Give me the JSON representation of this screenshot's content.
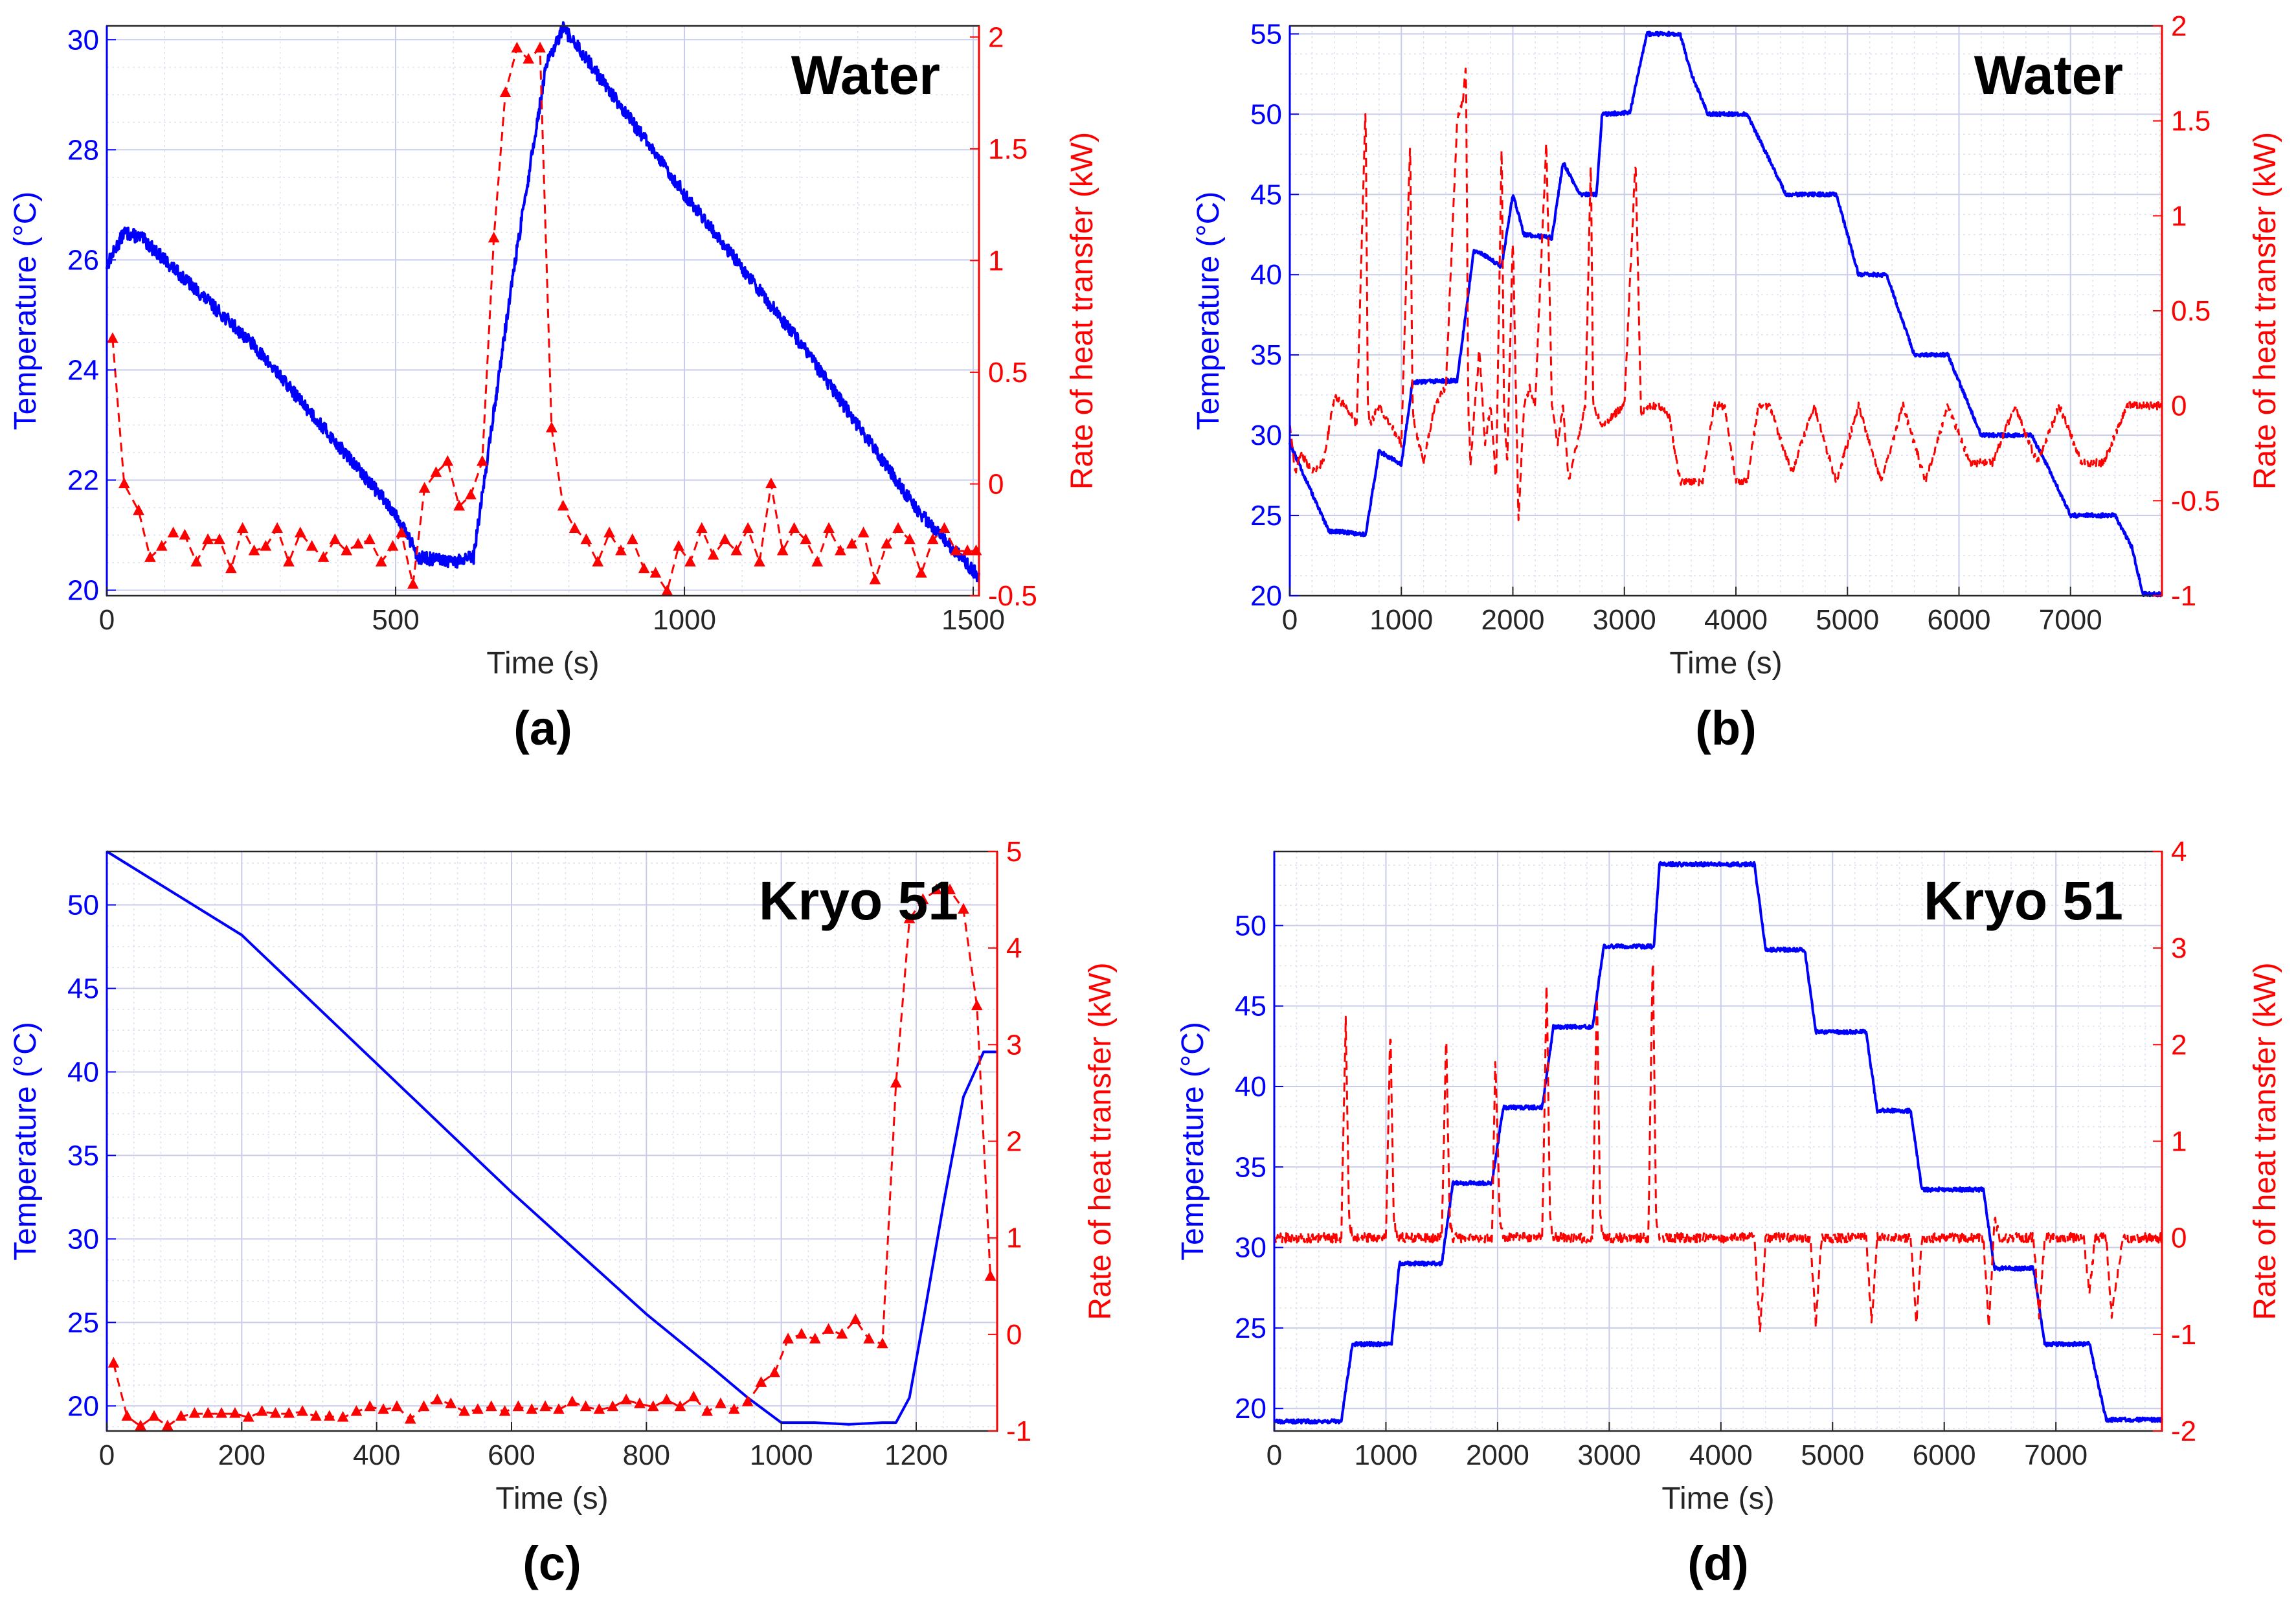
{
  "chart_data": [
    {
      "type": "line",
      "caption": "(a)",
      "title": "Water",
      "xlabel": "Time (s)",
      "ylabel": "Temperature (°C)",
      "ylabel2": "Rate of heat transfer (kW)",
      "xlim": [
        0,
        1510
      ],
      "ylim": [
        19.9,
        30.25
      ],
      "ylim2": [
        -0.5,
        2.05
      ],
      "xticks": [
        0,
        500,
        1000,
        1500
      ],
      "xtick_labels": [
        "0",
        "500",
        "1000",
        "1500"
      ],
      "yticks": [
        20,
        22,
        24,
        26,
        28,
        30
      ],
      "ytick_labels": [
        "20",
        "22",
        "24",
        "26",
        "28",
        "30"
      ],
      "yticks2": [
        -0.5,
        0,
        0.5,
        1,
        1.5,
        2
      ],
      "ytick_labels2": [
        "-0.5",
        "0",
        "0.5",
        "1",
        "1.5",
        "2"
      ],
      "grid": true,
      "colors": {
        "temperature": "#0000ff",
        "heat_rate": "#ff0000"
      },
      "series": [
        {
          "axis": "left",
          "style": "solid",
          "noise": 0.12,
          "x": [
            0,
            30,
            60,
            250,
            500,
            540,
            600,
            635,
            700,
            760,
            790,
            820,
            1000,
            1200,
            1400,
            1505,
            1510
          ],
          "y": [
            25.9,
            26.5,
            26.4,
            24.5,
            21.4,
            20.6,
            20.5,
            20.6,
            25.5,
            29.5,
            30.2,
            29.8,
            27.2,
            24.5,
            21.5,
            20.3,
            20.2
          ]
        },
        {
          "axis": "right",
          "style": "dashed-triangle",
          "noise": 0,
          "x": [
            10,
            30,
            55,
            75,
            95,
            115,
            135,
            155,
            175,
            195,
            215,
            235,
            255,
            275,
            295,
            315,
            335,
            355,
            375,
            395,
            415,
            435,
            455,
            475,
            495,
            510,
            530,
            550,
            570,
            590,
            610,
            630,
            650,
            670,
            690,
            710,
            730,
            750,
            770,
            790,
            810,
            830,
            850,
            870,
            890,
            910,
            930,
            950,
            970,
            990,
            1010,
            1030,
            1050,
            1070,
            1090,
            1110,
            1130,
            1150,
            1170,
            1190,
            1210,
            1230,
            1250,
            1270,
            1290,
            1310,
            1330,
            1350,
            1370,
            1390,
            1410,
            1430,
            1450,
            1470,
            1490,
            1505
          ],
          "y": [
            0.65,
            0.0,
            -0.12,
            -0.33,
            -0.28,
            -0.22,
            -0.23,
            -0.35,
            -0.25,
            -0.25,
            -0.38,
            -0.2,
            -0.3,
            -0.28,
            -0.2,
            -0.35,
            -0.22,
            -0.28,
            -0.33,
            -0.25,
            -0.3,
            -0.27,
            -0.25,
            -0.35,
            -0.28,
            -0.22,
            -0.45,
            -0.02,
            0.05,
            0.1,
            -0.1,
            -0.05,
            0.1,
            1.1,
            1.75,
            1.95,
            1.9,
            1.95,
            0.25,
            -0.1,
            -0.2,
            -0.25,
            -0.35,
            -0.22,
            -0.3,
            -0.25,
            -0.38,
            -0.4,
            -0.48,
            -0.28,
            -0.35,
            -0.2,
            -0.32,
            -0.25,
            -0.3,
            -0.2,
            -0.35,
            0.0,
            -0.3,
            -0.2,
            -0.25,
            -0.35,
            -0.2,
            -0.3,
            -0.27,
            -0.22,
            -0.43,
            -0.27,
            -0.2,
            -0.25,
            -0.4,
            -0.25,
            -0.2,
            -0.3,
            -0.3,
            -0.3
          ]
        }
      ]
    },
    {
      "type": "line",
      "caption": "(b)",
      "title": "Water",
      "xlabel": "Time (s)",
      "ylabel": "Temperature (°C)",
      "ylabel2": "Rate of heat transfer (kW)",
      "xlim": [
        0,
        7820
      ],
      "ylim": [
        20,
        55.5
      ],
      "ylim2": [
        -1,
        2
      ],
      "xticks": [
        0,
        1000,
        2000,
        3000,
        4000,
        5000,
        6000,
        7000
      ],
      "xtick_labels": [
        "0",
        "1000",
        "2000",
        "3000",
        "4000",
        "5000",
        "6000",
        "7000"
      ],
      "yticks": [
        20,
        25,
        30,
        35,
        40,
        45,
        50,
        55
      ],
      "ytick_labels": [
        "20",
        "25",
        "30",
        "35",
        "40",
        "45",
        "50",
        "55"
      ],
      "yticks2": [
        -1,
        -0.5,
        0,
        0.5,
        1,
        1.5,
        2
      ],
      "ytick_labels2": [
        "-1",
        "-0.5",
        "0",
        "0.5",
        "1",
        "1.5",
        "2"
      ],
      "grid": true,
      "colors": {
        "temperature": "#0000ff",
        "heat_rate": "#ff0000"
      },
      "series": [
        {
          "axis": "left",
          "style": "solid",
          "noise": 0.12,
          "x": [
            0,
            350,
            450,
            680,
            800,
            1000,
            1100,
            1500,
            1650,
            1750,
            1900,
            2000,
            2100,
            2350,
            2450,
            2600,
            2750,
            2800,
            3050,
            3200,
            3500,
            3600,
            3750,
            4000,
            4100,
            4450,
            4600,
            4900,
            5100,
            5350,
            5600,
            5900,
            6200,
            6500,
            6650,
            6800,
            7000,
            7400,
            7550,
            7650,
            7820
          ],
          "y": [
            29.5,
            24.0,
            24.0,
            23.8,
            29.0,
            28.2,
            33.3,
            33.4,
            41.5,
            41.2,
            40.5,
            45.0,
            42.5,
            42.3,
            47.0,
            45.0,
            45.0,
            50.0,
            50.1,
            55.0,
            55.0,
            52.5,
            50.0,
            50.0,
            50.0,
            45.0,
            45.0,
            45.0,
            40.0,
            40.0,
            35.0,
            35.0,
            30.0,
            30.0,
            30.0,
            28.0,
            25.0,
            25.0,
            23.0,
            20.1,
            20.1
          ]
        },
        {
          "axis": "right",
          "style": "dashed",
          "noise": 0.02,
          "x": [
            0,
            50,
            100,
            200,
            300,
            400,
            500,
            600,
            680,
            700,
            720,
            800,
            900,
            1000,
            1080,
            1100,
            1120,
            1200,
            1300,
            1400,
            1500,
            1550,
            1580,
            1600,
            1620,
            1700,
            1750,
            1800,
            1850,
            1900,
            1920,
            1950,
            2000,
            2050,
            2100,
            2150,
            2200,
            2300,
            2350,
            2400,
            2450,
            2500,
            2650,
            2700,
            2720,
            2800,
            2900,
            3000,
            3100,
            3150,
            3200,
            3300,
            3400,
            3500,
            3700,
            3800,
            3900,
            4000,
            4100,
            4200,
            4300,
            4500,
            4700,
            4900,
            5100,
            5300,
            5500,
            5700,
            5900,
            6100,
            6300,
            6500,
            6700,
            6900,
            7100,
            7300,
            7500,
            7700,
            7820
          ],
          "y": [
            -0.1,
            -0.35,
            -0.25,
            -0.35,
            -0.3,
            0.05,
            0.0,
            -0.1,
            1.6,
            0.0,
            -0.1,
            0.0,
            -0.1,
            -0.2,
            1.4,
            0.0,
            -0.1,
            -0.3,
            0.0,
            0.1,
            1.5,
            1.6,
            1.8,
            0.0,
            -0.3,
            0.3,
            -0.2,
            0.0,
            -0.4,
            1.4,
            0.0,
            -0.3,
            0.9,
            -0.6,
            0.0,
            0.1,
            0.0,
            1.4,
            0.0,
            -0.2,
            0.0,
            -0.4,
            0.0,
            1.3,
            0.0,
            -0.1,
            -0.05,
            0.0,
            1.3,
            -0.05,
            0.0,
            0.0,
            -0.05,
            -0.4,
            -0.4,
            0.0,
            0.0,
            -0.4,
            -0.4,
            0.0,
            0.0,
            -0.35,
            0.0,
            -0.4,
            0.0,
            -0.4,
            0.0,
            -0.4,
            0.0,
            -0.3,
            -0.3,
            0.0,
            -0.3,
            0.0,
            -0.3,
            -0.3,
            0.0,
            0.0,
            0.0
          ]
        }
      ]
    },
    {
      "type": "line",
      "caption": "(c)",
      "title": "Kryo 51",
      "xlabel": "Time (s)",
      "ylabel": "Temperature (°C)",
      "ylabel2": "Rate of heat transfer (kW)",
      "xlim": [
        0,
        1320
      ],
      "ylim": [
        18.5,
        53.2
      ],
      "ylim2": [
        -1,
        5
      ],
      "xticks": [
        0,
        200,
        400,
        600,
        800,
        1000,
        1200
      ],
      "xtick_labels": [
        "0",
        "200",
        "400",
        "600",
        "800",
        "1000",
        "1200"
      ],
      "yticks": [
        20,
        25,
        30,
        35,
        40,
        45,
        50
      ],
      "ytick_labels": [
        "20",
        "25",
        "30",
        "35",
        "40",
        "45",
        "50"
      ],
      "yticks2": [
        -1,
        0,
        1,
        2,
        3,
        4,
        5
      ],
      "ytick_labels2": [
        "-1",
        "0",
        "1",
        "2",
        "3",
        "4",
        "5"
      ],
      "grid": true,
      "colors": {
        "temperature": "#0000ff",
        "heat_rate": "#ff0000"
      },
      "series": [
        {
          "axis": "left",
          "style": "solid",
          "noise": 0,
          "x": [
            0,
            200,
            400,
            600,
            800,
            900,
            950,
            1000,
            1050,
            1100,
            1150,
            1170,
            1190,
            1210,
            1240,
            1270,
            1300,
            1320
          ],
          "y": [
            53.2,
            48.2,
            40.5,
            32.8,
            25.5,
            22.2,
            20.5,
            19.0,
            19.0,
            18.9,
            19.0,
            19.0,
            20.5,
            25.0,
            32.0,
            38.5,
            41.2,
            41.2
          ]
        },
        {
          "axis": "right",
          "style": "dashed-triangle",
          "noise": 0,
          "x": [
            10,
            30,
            50,
            70,
            90,
            110,
            130,
            150,
            170,
            190,
            210,
            230,
            250,
            270,
            290,
            310,
            330,
            350,
            370,
            390,
            410,
            430,
            450,
            470,
            490,
            510,
            530,
            550,
            570,
            590,
            610,
            630,
            650,
            670,
            690,
            710,
            730,
            750,
            770,
            790,
            810,
            830,
            850,
            870,
            890,
            910,
            930,
            950,
            970,
            990,
            1010,
            1030,
            1050,
            1070,
            1090,
            1110,
            1130,
            1150,
            1170,
            1190,
            1210,
            1230,
            1250,
            1270,
            1290,
            1310
          ],
          "y": [
            -0.3,
            -0.85,
            -0.95,
            -0.85,
            -0.95,
            -0.85,
            -0.82,
            -0.82,
            -0.82,
            -0.82,
            -0.86,
            -0.8,
            -0.82,
            -0.82,
            -0.8,
            -0.85,
            -0.85,
            -0.86,
            -0.8,
            -0.75,
            -0.78,
            -0.75,
            -0.88,
            -0.75,
            -0.68,
            -0.72,
            -0.8,
            -0.78,
            -0.75,
            -0.8,
            -0.75,
            -0.78,
            -0.75,
            -0.78,
            -0.7,
            -0.75,
            -0.78,
            -0.75,
            -0.68,
            -0.72,
            -0.75,
            -0.68,
            -0.75,
            -0.65,
            -0.8,
            -0.72,
            -0.78,
            -0.7,
            -0.5,
            -0.4,
            -0.05,
            0.0,
            -0.05,
            0.05,
            0.0,
            0.15,
            -0.05,
            -0.1,
            2.6,
            4.3,
            4.5,
            4.6,
            4.6,
            4.4,
            3.4,
            0.6
          ]
        }
      ]
    },
    {
      "type": "line",
      "caption": "(d)",
      "title": "Kryo 51",
      "xlabel": "Time (s)",
      "ylabel": "Temperature (°C)",
      "ylabel2": "Rate of heat transfer (kW)",
      "xlim": [
        0,
        7950
      ],
      "ylim": [
        18.6,
        54.6
      ],
      "ylim2": [
        -2,
        4
      ],
      "xticks": [
        0,
        1000,
        2000,
        3000,
        4000,
        5000,
        6000,
        7000
      ],
      "xtick_labels": [
        "0",
        "1000",
        "2000",
        "3000",
        "4000",
        "5000",
        "6000",
        "7000"
      ],
      "yticks": [
        20,
        25,
        30,
        35,
        40,
        45,
        50
      ],
      "ytick_labels": [
        "20",
        "25",
        "30",
        "35",
        "40",
        "45",
        "50"
      ],
      "yticks2": [
        -2,
        -1,
        0,
        1,
        2,
        3,
        4
      ],
      "ytick_labels2": [
        "-2",
        "-1",
        "0",
        "1",
        "2",
        "3",
        "4"
      ],
      "grid": true,
      "colors": {
        "temperature": "#0000ff",
        "heat_rate": "#ff0000"
      },
      "series": [
        {
          "axis": "left",
          "style": "solid",
          "noise": 0.12,
          "x": [
            0,
            600,
            700,
            1050,
            1120,
            1500,
            1600,
            1950,
            2050,
            2400,
            2500,
            2850,
            2950,
            3400,
            3450,
            4300,
            4400,
            4750,
            4850,
            5300,
            5400,
            5700,
            5800,
            6350,
            6450,
            6800,
            6900,
            7300,
            7450,
            7950
          ],
          "y": [
            19.2,
            19.2,
            24.0,
            24.0,
            29.0,
            29.0,
            34.0,
            34.0,
            38.7,
            38.7,
            43.7,
            43.7,
            48.7,
            48.7,
            53.8,
            53.8,
            48.5,
            48.5,
            43.4,
            43.4,
            38.5,
            38.5,
            33.6,
            33.6,
            28.7,
            28.7,
            24.0,
            24.0,
            19.3,
            19.3
          ]
        },
        {
          "axis": "right",
          "style": "dashed",
          "noise": 0.05,
          "x": [
            0,
            600,
            640,
            670,
            700,
            1000,
            1040,
            1070,
            1100,
            1500,
            1540,
            1570,
            1600,
            1950,
            1980,
            2020,
            2050,
            2400,
            2440,
            2470,
            2500,
            2850,
            2890,
            2920,
            2950,
            3350,
            3390,
            3420,
            3450,
            4300,
            4350,
            4400,
            4800,
            4850,
            4900,
            5300,
            5350,
            5400,
            5700,
            5750,
            5800,
            6350,
            6400,
            6450,
            6500,
            6800,
            6850,
            6900,
            7250,
            7300,
            7350,
            7450,
            7500,
            7600,
            7950
          ],
          "y": [
            0.0,
            0.0,
            2.3,
            0.2,
            0.0,
            0.0,
            2.2,
            0.2,
            0.0,
            0.0,
            2.1,
            0.2,
            0.0,
            0.0,
            1.9,
            0.2,
            0.0,
            0.0,
            2.7,
            0.2,
            0.0,
            0.0,
            2.6,
            0.2,
            0.0,
            0.0,
            3.0,
            0.2,
            0.0,
            0.0,
            -1.0,
            0.0,
            0.0,
            -0.9,
            0.0,
            0.0,
            -0.9,
            0.0,
            0.0,
            -0.9,
            0.0,
            0.0,
            -0.9,
            0.2,
            0.0,
            0.0,
            -0.8,
            0.0,
            0.0,
            -0.6,
            0.0,
            0.0,
            -0.8,
            0.0,
            0.0
          ]
        }
      ]
    }
  ]
}
